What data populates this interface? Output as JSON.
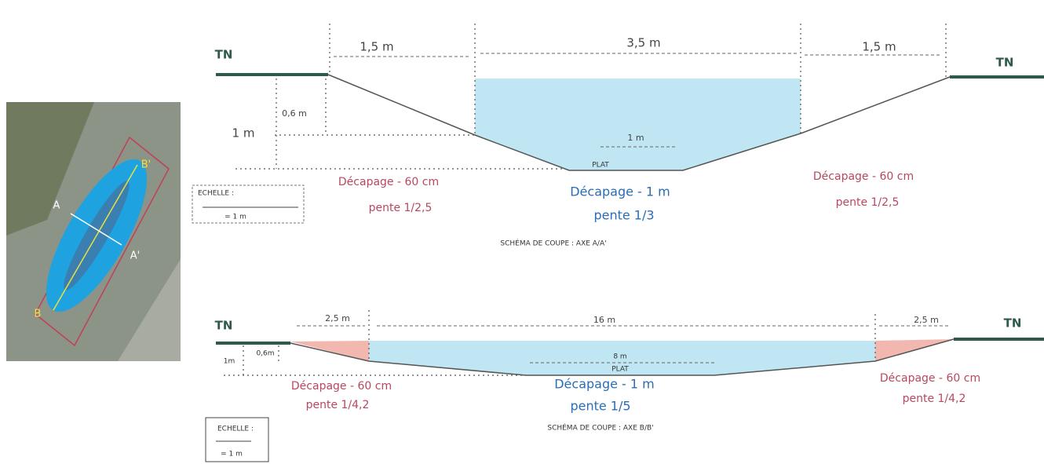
{
  "map": {
    "labels": [
      "A",
      "A'",
      "B",
      "B'"
    ]
  },
  "section_a": {
    "tn_left": "TN",
    "tn_right": "TN",
    "widths": [
      "1,5 m",
      "3,5 m",
      "1,5 m"
    ],
    "depth_total": "1 m",
    "depth_partial": "0,6 m",
    "flat_width": "1 m",
    "flat": "PLAT",
    "zones": [
      {
        "title": "Décapage - 60 cm",
        "slope": "pente 1/2,5"
      },
      {
        "title": "Décapage - 1 m",
        "slope": "pente 1/3"
      },
      {
        "title": "Décapage - 60 cm",
        "slope": "pente 1/2,5"
      }
    ],
    "caption": "SCHÉMA DE COUPE : AXE A/A'",
    "scale": {
      "title": "ECHELLE :",
      "value": "= 1 m"
    }
  },
  "section_b": {
    "tn_left": "TN",
    "tn_right": "TN",
    "widths": [
      "2,5 m",
      "16 m",
      "2,5 m"
    ],
    "depth_total": "1m",
    "depth_partial": "0,6m",
    "flat_width": "8 m",
    "flat": "PLAT",
    "zones": [
      {
        "title": "Décapage - 60 cm",
        "slope": "pente 1/4,2"
      },
      {
        "title": "Décapage - 1 m",
        "slope": "pente 1/5"
      },
      {
        "title": "Décapage - 60 cm",
        "slope": "pente 1/4,2"
      }
    ],
    "caption": "SCHÉMA DE COUPE : AXE B/B'",
    "scale": {
      "title": "ECHELLE :",
      "value": "= 1 m"
    }
  }
}
